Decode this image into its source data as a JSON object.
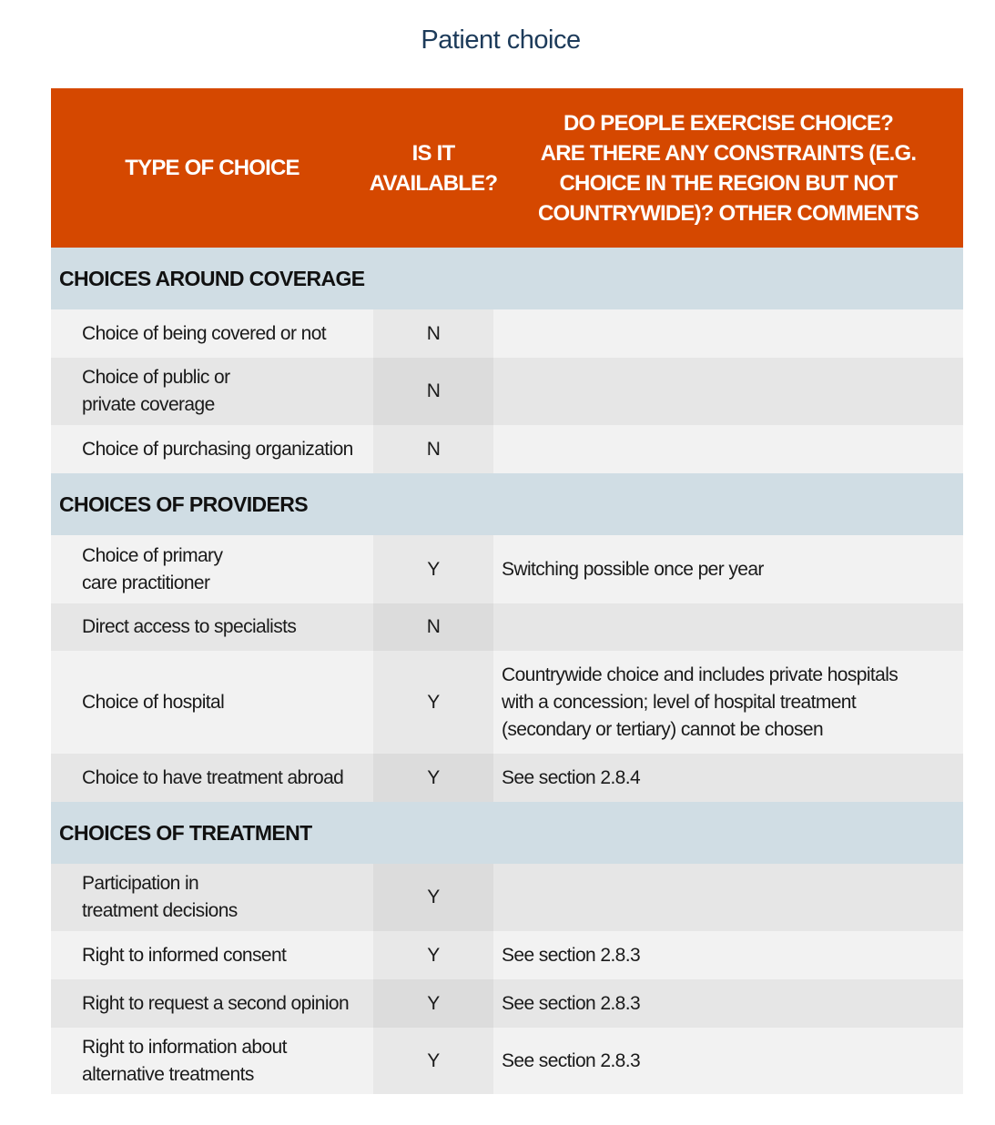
{
  "title": "Patient choice",
  "headers": [
    "TYPE OF CHOICE",
    "IS IT\nAVAILABLE?",
    "DO PEOPLE EXERCISE CHOICE?\nARE THERE ANY CONSTRAINTS (E.G.\nCHOICE IN THE REGION BUT NOT\nCOUNTRYWIDE)? OTHER COMMENTS"
  ],
  "sections": [
    {
      "title": "CHOICES AROUND COVERAGE",
      "rows": [
        {
          "type": "Choice of being covered or not",
          "available": "N",
          "comment": ""
        },
        {
          "type": "Choice of public or\nprivate coverage",
          "available": "N",
          "comment": ""
        },
        {
          "type": "Choice of purchasing organization",
          "available": "N",
          "comment": ""
        }
      ]
    },
    {
      "title": "CHOICES OF PROVIDERS",
      "rows": [
        {
          "type": "Choice of primary\ncare practitioner",
          "available": "Y",
          "comment": "Switching possible once per year"
        },
        {
          "type": "Direct access to specialists",
          "available": "N",
          "comment": ""
        },
        {
          "type": "Choice of hospital",
          "available": "Y",
          "comment": "Countrywide choice and includes private hospitals\nwith a concession; level of hospital treatment\n(secondary or tertiary) cannot be chosen"
        },
        {
          "type": "Choice to have treatment abroad",
          "available": "Y",
          "comment": "See section 2.8.4"
        }
      ]
    },
    {
      "title": "CHOICES OF TREATMENT",
      "rows": [
        {
          "type": "Participation in\ntreatment decisions",
          "available": "Y",
          "comment": ""
        },
        {
          "type": "Right to informed consent",
          "available": "Y",
          "comment": "See section 2.8.3"
        },
        {
          "type": "Right to request a second opinion",
          "available": "Y",
          "comment": "See section 2.8.3"
        },
        {
          "type": "Right to information about\nalternative treatments",
          "available": "Y",
          "comment": "See section 2.8.3"
        }
      ]
    }
  ]
}
